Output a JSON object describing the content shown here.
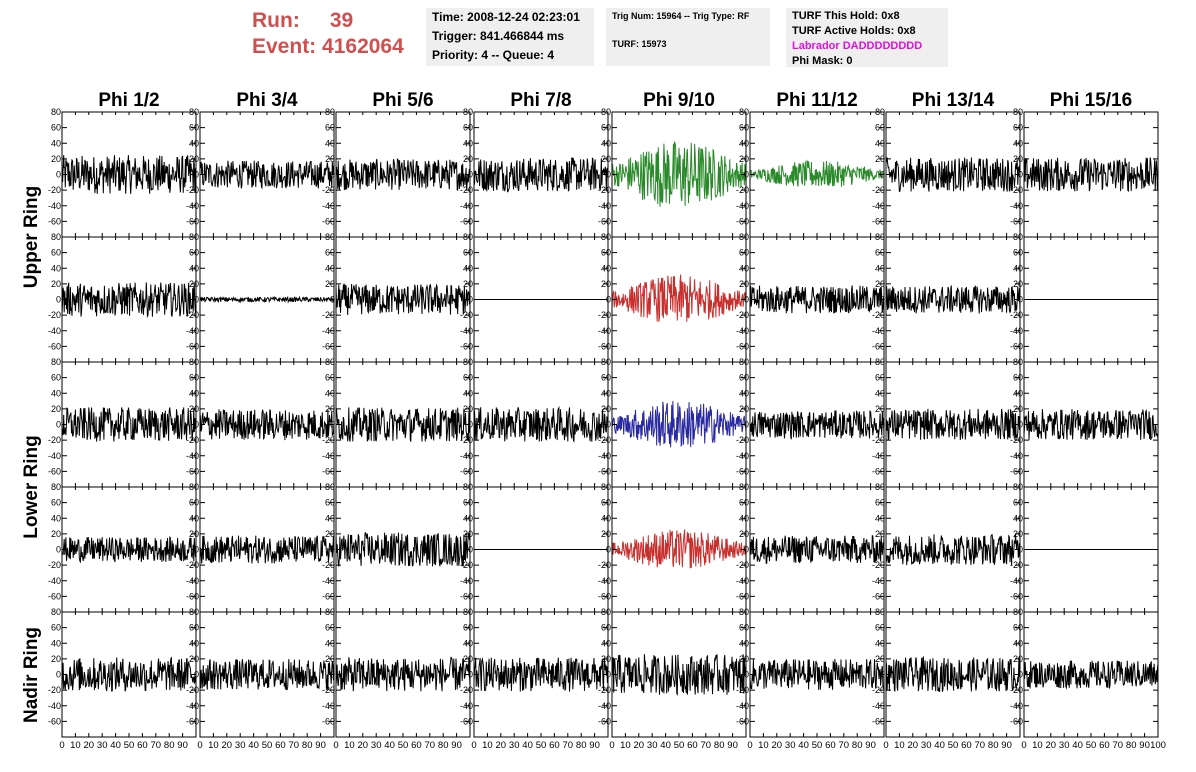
{
  "header": {
    "run_label": "Run:",
    "run_value": "39",
    "event_label": "Event:",
    "event_value": "4162064",
    "time": "Time: 2008-12-24 02:23:01",
    "trigger": "Trigger: 841.466844 ms",
    "priority": "Priority: 4 -- Queue: 4",
    "trig_num": "Trig Num: 15964 -- Trig Type: RF",
    "turf": "TURF: 15973",
    "turf_hold": "TURF This Hold: 0x8",
    "turf_active": "TURF Active Holds: 0x8",
    "labrador": "Labrador DADDDDDDDD",
    "phi_mask": "Phi Mask: 0"
  },
  "colors": {
    "run_text": "#d05050",
    "panel_bg": "#efefef",
    "magenta": "#e010e0",
    "trace_default": "#000000",
    "trace_green": "#2a8a2a",
    "trace_red": "#c8302e",
    "trace_blue": "#2a2aa0"
  },
  "chart_data": {
    "type": "line",
    "columns": [
      "Phi 1/2",
      "Phi 3/4",
      "Phi 5/6",
      "Phi 7/8",
      "Phi 9/10",
      "Phi 11/12",
      "Phi 13/14",
      "Phi 15/16"
    ],
    "row_labels": [
      "Upper Ring",
      "Lower Ring",
      "Nadir Ring"
    ],
    "ylim": [
      -80,
      80
    ],
    "yticks": [
      -60,
      -40,
      -20,
      0,
      20,
      40,
      60,
      80
    ],
    "xlim": [
      0,
      100
    ],
    "xticks": [
      0,
      10,
      20,
      30,
      40,
      50,
      60,
      70,
      80,
      90,
      100
    ],
    "grid": false,
    "traces": [
      {
        "row": 0,
        "amplitude": [
          25,
          18,
          20,
          22,
          45,
          18,
          22,
          22
        ],
        "color": [
          "trace_default",
          "trace_default",
          "trace_default",
          "trace_default",
          "trace_green",
          "trace_green",
          "trace_default",
          "trace_default"
        ]
      },
      {
        "row": 1,
        "amplitude": [
          22,
          3,
          20,
          0,
          32,
          18,
          18,
          0
        ],
        "color": [
          "trace_default",
          "trace_default",
          "trace_default",
          "trace_default",
          "trace_red",
          "trace_default",
          "trace_default",
          "trace_default"
        ]
      },
      {
        "row": 2,
        "amplitude": [
          22,
          20,
          22,
          22,
          32,
          18,
          20,
          20
        ],
        "color": [
          "trace_default",
          "trace_default",
          "trace_default",
          "trace_default",
          "trace_blue",
          "trace_default",
          "trace_default",
          "trace_default"
        ]
      },
      {
        "row": 3,
        "amplitude": [
          16,
          18,
          22,
          0,
          26,
          18,
          20,
          0
        ],
        "color": [
          "trace_default",
          "trace_default",
          "trace_default",
          "trace_default",
          "trace_red",
          "trace_default",
          "trace_default",
          "trace_default"
        ]
      },
      {
        "row": 4,
        "amplitude": [
          22,
          20,
          22,
          22,
          26,
          20,
          22,
          18
        ],
        "color": [
          "trace_default",
          "trace_default",
          "trace_default",
          "trace_default",
          "trace_default",
          "trace_default",
          "trace_default",
          "trace_default"
        ]
      }
    ]
  }
}
